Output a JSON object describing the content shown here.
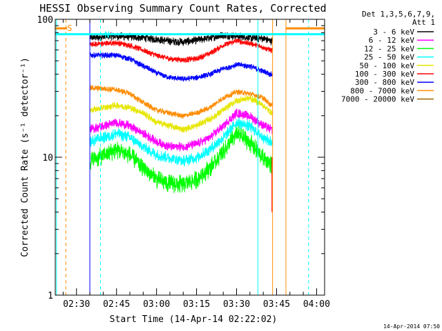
{
  "chart_data": {
    "type": "line",
    "title": "HESSI Observing Summary Count Rates, Corrected",
    "xlabel": "Start Time (14-Apr-14 02:22:02)",
    "ylabel": "Corrected Count Rate (s⁻¹ detector⁻¹)",
    "y_scale": "log",
    "ylim": [
      1,
      100
    ],
    "xlim": [
      "02:22:02",
      "04:03:00"
    ],
    "x_tick_labels": [
      "02:30",
      "02:45",
      "03:00",
      "03:15",
      "03:30",
      "03:45",
      "04:00"
    ],
    "y_tick_labels": [
      "1",
      "10",
      "100"
    ],
    "legend": {
      "placement": "right",
      "header": [
        "Det 1,3,5,6,7,9,",
        "Att 1"
      ],
      "entries": [
        {
          "label": "3 - 6 keV",
          "color": "#000000"
        },
        {
          "label": "6 - 12 keV",
          "color": "#ff00ff"
        },
        {
          "label": "12 - 25 keV",
          "color": "#00ff00"
        },
        {
          "label": "25 - 50 keV",
          "color": "#00ffff"
        },
        {
          "label": "50 - 100 keV",
          "color": "#e6e600"
        },
        {
          "label": "100 - 300 keV",
          "color": "#ff0000"
        },
        {
          "label": "300 - 800 keV",
          "color": "#0000ff"
        },
        {
          "label": "800 - 7000 keV",
          "color": "#ff8c00"
        },
        {
          "label": "7000 - 20000 keV",
          "color": "#996600"
        }
      ]
    },
    "data_window": {
      "start": "02:35:00",
      "end": "03:43:30"
    },
    "series": [
      {
        "name": "3 - 6 keV",
        "color": "#000000",
        "noise": 0.07,
        "x": [
          "02:35",
          "02:45",
          "02:50",
          "02:55",
          "03:00",
          "03:05",
          "03:10",
          "03:15",
          "03:20",
          "03:25",
          "03:30",
          "03:35",
          "03:40",
          "03:43"
        ],
        "y": [
          74,
          76,
          75,
          74,
          72,
          70,
          69,
          71,
          74,
          77,
          76,
          74,
          73,
          70
        ]
      },
      {
        "name": "100 - 300 keV",
        "color": "#ff0000",
        "noise": 0.05,
        "x": [
          "02:35",
          "02:45",
          "02:50",
          "02:55",
          "03:00",
          "03:05",
          "03:10",
          "03:15",
          "03:20",
          "03:25",
          "03:30",
          "03:35",
          "03:40",
          "03:43"
        ],
        "y": [
          66,
          68,
          65,
          60,
          55,
          52,
          51,
          52,
          57,
          65,
          70,
          67,
          63,
          60
        ]
      },
      {
        "name": "300 - 800 keV",
        "color": "#0000ff",
        "noise": 0.05,
        "x": [
          "02:35",
          "02:45",
          "02:50",
          "02:55",
          "03:00",
          "03:05",
          "03:10",
          "03:15",
          "03:20",
          "03:25",
          "03:30",
          "03:35",
          "03:40",
          "03:43"
        ],
        "y": [
          55,
          55,
          52,
          46,
          41,
          38,
          37,
          38,
          40,
          44,
          47,
          46,
          42,
          40
        ]
      },
      {
        "name": "800 - 7000 keV",
        "color": "#ff8c00",
        "noise": 0.05,
        "x": [
          "02:35",
          "02:45",
          "02:50",
          "02:55",
          "03:00",
          "03:05",
          "03:10",
          "03:15",
          "03:20",
          "03:25",
          "03:30",
          "03:35",
          "03:40",
          "03:43"
        ],
        "y": [
          32,
          31,
          29,
          25,
          22,
          21,
          20,
          21,
          23,
          27,
          30,
          29,
          27,
          24
        ]
      },
      {
        "name": "50 - 100 keV",
        "color": "#e6e600",
        "noise": 0.06,
        "x": [
          "02:35",
          "02:45",
          "02:50",
          "02:55",
          "03:00",
          "03:05",
          "03:10",
          "03:15",
          "03:20",
          "03:25",
          "03:30",
          "03:35",
          "03:40",
          "03:43"
        ],
        "y": [
          22,
          24,
          23,
          21,
          18,
          17,
          16,
          17,
          19,
          22,
          26,
          27,
          24,
          21
        ]
      },
      {
        "name": "6 - 12 keV",
        "color": "#ff00ff",
        "noise": 0.08,
        "x": [
          "02:35",
          "02:45",
          "02:50",
          "02:55",
          "03:00",
          "03:05",
          "03:10",
          "03:15",
          "03:20",
          "03:25",
          "03:30",
          "03:35",
          "03:40",
          "03:43"
        ],
        "y": [
          16,
          18,
          17,
          15,
          13,
          12,
          12,
          12.5,
          14,
          17,
          21,
          20,
          17,
          16
        ]
      },
      {
        "name": "25 - 50 keV",
        "color": "#00ffff",
        "noise": 0.1,
        "x": [
          "02:35",
          "02:45",
          "02:50",
          "02:55",
          "03:00",
          "03:05",
          "03:10",
          "03:15",
          "03:20",
          "03:25",
          "03:30",
          "03:35",
          "03:40",
          "03:43"
        ],
        "y": [
          13,
          15,
          14,
          12,
          10.5,
          10,
          9.5,
          10,
          11.5,
          14,
          18,
          17,
          14,
          13
        ]
      },
      {
        "name": "12 - 25 keV",
        "color": "#00ff00",
        "noise": 0.16,
        "x": [
          "02:35",
          "02:45",
          "02:50",
          "02:55",
          "03:00",
          "03:05",
          "03:10",
          "03:15",
          "03:20",
          "03:25",
          "03:30",
          "03:35",
          "03:40",
          "03:43"
        ],
        "y": [
          9.5,
          11.5,
          10.5,
          8.5,
          7,
          6.5,
          6.5,
          7,
          8.5,
          11,
          15,
          13,
          10,
          9
        ]
      }
    ],
    "vertical_lines": [
      {
        "x": "02:22:30",
        "color": "#00ffff",
        "style": "solid"
      },
      {
        "x": "02:26:00",
        "color": "#ff8c00",
        "style": "dashed"
      },
      {
        "x": "02:35:00",
        "color": "#0000ff",
        "style": "solid"
      },
      {
        "x": "02:39:00",
        "color": "#00ffff",
        "style": "dashed"
      },
      {
        "x": "03:38:00",
        "color": "#00ffff",
        "style": "solid"
      },
      {
        "x": "03:43:30",
        "color": "#ff8c00",
        "style": "solid"
      },
      {
        "x": "03:48:30",
        "color": "#ff8c00",
        "style": "solid"
      },
      {
        "x": "03:57:00",
        "color": "#00ffff",
        "style": "dashed"
      }
    ],
    "flag_bars": [
      {
        "color": "#00ffff",
        "y": 78,
        "from": "02:22:02",
        "to": "04:03:00"
      },
      {
        "color": "#ff8c00",
        "y": 86,
        "from": "02:22:02",
        "to": "02:26:30"
      },
      {
        "color": "#ff8c00",
        "y": 86,
        "from": "03:48:30",
        "to": "04:03:00"
      }
    ],
    "annotations": [
      {
        "text": "S",
        "color": "#ff8c00",
        "x": "02:26:30",
        "y": 86
      },
      {
        "text": "N",
        "color": "#00ffff",
        "x": "02:40:30",
        "y": 77
      }
    ]
  },
  "footer": {
    "timestamp": "14-Apr-2014 07:50"
  }
}
